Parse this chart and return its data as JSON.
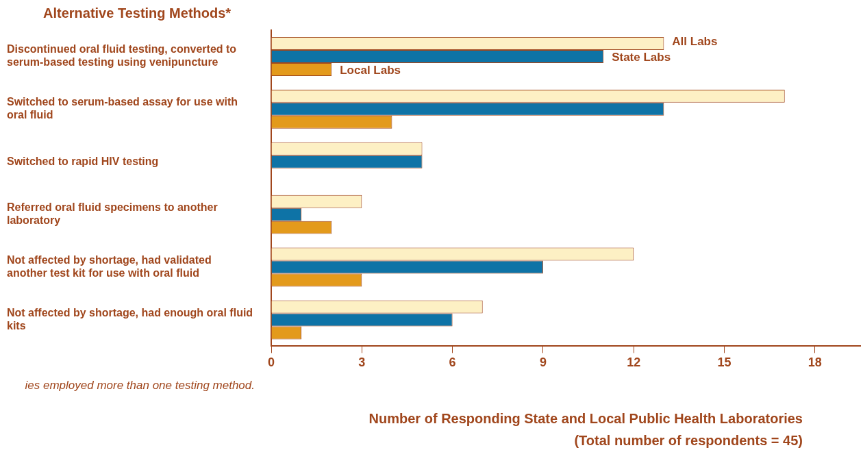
{
  "chart_data": {
    "type": "bar",
    "orientation": "horizontal",
    "title": "Alternative Testing Methods*",
    "xlabel": "Number of Responding State and Local Public Health Laboratories",
    "categories": [
      "Discontinued oral fluid testing, converted to serum-based testing using venipuncture",
      "Switched to serum-based assay for use with oral fluid",
      "Switched to rapid HIV testing",
      "Referred oral fluid specimens to another laboratory",
      "Not affected by shortage, had validated another test kit for use with oral fluid",
      "Not affected by shortage, had enough oral fluid kits"
    ],
    "series": [
      {
        "name": "All Labs",
        "color": "#fdf0c4",
        "values": [
          13,
          17,
          5,
          3,
          12,
          7
        ]
      },
      {
        "name": "State Labs",
        "color": "#0e73a6",
        "values": [
          11,
          13,
          5,
          1,
          9,
          6
        ]
      },
      {
        "name": "Local Labs",
        "color": "#e39a1c",
        "values": [
          2,
          4,
          0,
          2,
          3,
          1
        ]
      }
    ],
    "xlim": [
      0,
      19.5
    ],
    "xticks": [
      0,
      3,
      6,
      9,
      12,
      15,
      18
    ],
    "grid": false,
    "legend": false,
    "annotations": [
      "ies employed more than one testing method.",
      "(Total number of respondents = 45)"
    ]
  }
}
